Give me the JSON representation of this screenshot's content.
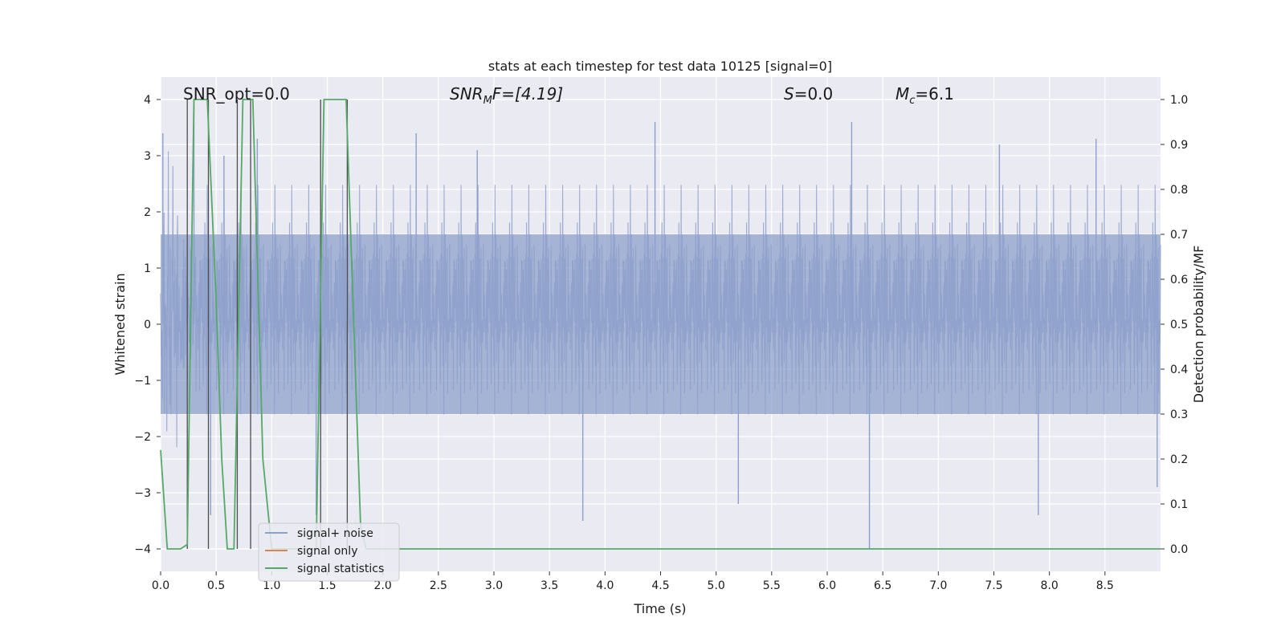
{
  "chart_data": {
    "type": "line",
    "title": "stats at each timestep for test data 10125 [signal=0]",
    "xlabel": "Time (s)",
    "ylabel": "Whitened strain",
    "y2label": "Detection probability/MF",
    "xlim": [
      0.0,
      9.0
    ],
    "ylim": [
      -4.4,
      4.4
    ],
    "y2lim": [
      -0.05,
      1.05
    ],
    "x_ticks": [
      0.0,
      0.5,
      1.0,
      1.5,
      2.0,
      2.5,
      3.0,
      3.5,
      4.0,
      4.5,
      5.0,
      5.5,
      6.0,
      6.5,
      7.0,
      7.5,
      8.0,
      8.5
    ],
    "x_tick_labels": [
      "0.0",
      "0.5",
      "1.0",
      "1.5",
      "2.0",
      "2.5",
      "3.0",
      "3.5",
      "4.0",
      "4.5",
      "5.0",
      "5.5",
      "6.0",
      "6.5",
      "7.0",
      "7.5",
      "8.0",
      "8.5"
    ],
    "y_ticks": [
      4,
      3,
      2,
      1,
      0,
      -1,
      -2,
      -3,
      -4
    ],
    "y_tick_labels": [
      "4",
      "3",
      "2",
      "1",
      "0",
      "−1",
      "−2",
      "−3",
      "−4"
    ],
    "y2_ticks": [
      1.0,
      0.9,
      0.8,
      0.7,
      0.6,
      0.5,
      0.4,
      0.3,
      0.2,
      0.1,
      0.0
    ],
    "y2_tick_labels": [
      "1.0",
      "0.9",
      "0.8",
      "0.7",
      "0.6",
      "0.5",
      "0.4",
      "0.3",
      "0.2",
      "0.1",
      "0.0"
    ],
    "grid": true,
    "legend_position": "bottom-left",
    "annotations": {
      "snr_opt": "SNR_opt=0.0",
      "snr_mf_base": "SNR",
      "snr_mf_sub": "M",
      "snr_mf_tail": "F=[4.19]",
      "s_label": "S",
      "s_tail": "=0.0",
      "mc_base": "M",
      "mc_sub": "c",
      "mc_tail": "=6.1"
    },
    "series": [
      {
        "name": "signal+ noise",
        "color": "#8da0cb",
        "axis": "left",
        "description": "whitened strain noise, approx. white noise spanning about ±1.6 with spikes to ±4",
        "dense_band": [
          -1.6,
          1.6
        ],
        "peak_times": [
          0.02,
          0.3,
          0.45,
          0.57,
          0.87,
          1.4,
          2.3,
          2.85,
          3.8,
          4.45,
          5.2,
          6.22,
          6.38,
          7.55,
          7.9,
          8.42,
          8.97
        ],
        "peak_values": [
          3.4,
          3.9,
          -3.4,
          3.0,
          3.3,
          -3.4,
          3.4,
          3.1,
          -3.5,
          3.6,
          -3.2,
          3.6,
          -4.0,
          3.2,
          -3.4,
          3.3,
          -2.9
        ]
      },
      {
        "name": "signal only",
        "color": "#dd8452",
        "axis": "left",
        "x": [
          0.0,
          9.0
        ],
        "y": [
          0.0,
          0.0
        ]
      },
      {
        "name": "signal statistics",
        "color": "#55a868",
        "axis": "right",
        "x": [
          0.0,
          0.06,
          0.18,
          0.24,
          0.3,
          0.42,
          0.5,
          0.55,
          0.6,
          0.66,
          0.74,
          0.83,
          0.92,
          1.0,
          1.12,
          1.4,
          1.47,
          1.52,
          1.67,
          1.8,
          1.85,
          9.0
        ],
        "y": [
          0.22,
          0.0,
          0.0,
          0.01,
          1.0,
          1.0,
          0.55,
          0.2,
          0.0,
          0.0,
          1.0,
          1.0,
          0.2,
          0.0,
          0.0,
          0.0,
          1.0,
          1.0,
          1.0,
          0.05,
          0.0,
          0.0
        ]
      }
    ],
    "marker_lines": {
      "color": "#4d4d4d",
      "x": [
        0.24,
        0.43,
        0.69,
        0.81,
        1.44,
        1.68
      ],
      "y_top": [
        4.0,
        4.0,
        4.0,
        4.0,
        4.0,
        4.0
      ]
    }
  }
}
